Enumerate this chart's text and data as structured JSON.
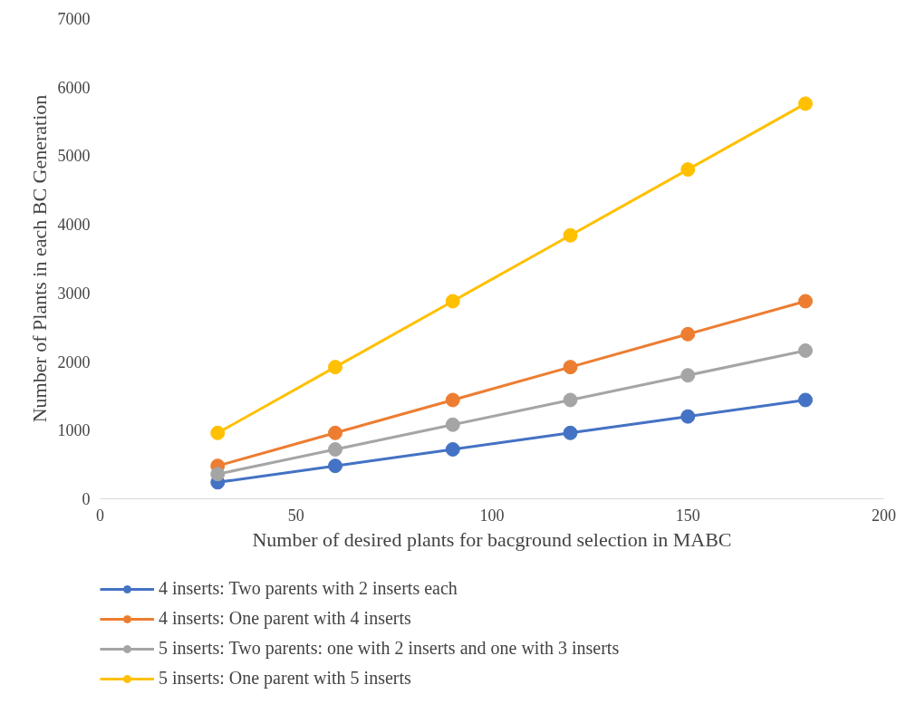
{
  "chart_data": {
    "type": "line",
    "xlabel": "Number of desired plants for bacground selection in MABC",
    "ylabel": "Number of Plants in each BC Generation",
    "x": [
      30,
      60,
      90,
      120,
      150,
      180
    ],
    "series": [
      {
        "name": "4 inserts: Two parents with 2 inserts each",
        "color": "#4472c4",
        "values": [
          240,
          480,
          720,
          960,
          1200,
          1440
        ]
      },
      {
        "name": "4 inserts: One parent with 4 inserts",
        "color": "#ed7d31",
        "values": [
          480,
          960,
          1440,
          1920,
          2400,
          2880
        ]
      },
      {
        "name": "5 inserts: Two parents: one with 2 inserts and one with 3 inserts",
        "color": "#a5a5a5",
        "values": [
          360,
          720,
          1080,
          1440,
          1800,
          2160
        ]
      },
      {
        "name": "5 inserts: One parent with 5 inserts",
        "color": "#ffc000",
        "values": [
          960,
          1920,
          2880,
          3840,
          4800,
          5760
        ]
      }
    ],
    "xlim": [
      0,
      200
    ],
    "ylim": [
      0,
      7000
    ],
    "xticks": [
      0,
      50,
      100,
      150,
      200
    ],
    "yticks": [
      0,
      1000,
      2000,
      3000,
      4000,
      5000,
      6000,
      7000
    ],
    "grid": false,
    "legend": "bottom",
    "marker": "circle",
    "line_style": "solid"
  }
}
